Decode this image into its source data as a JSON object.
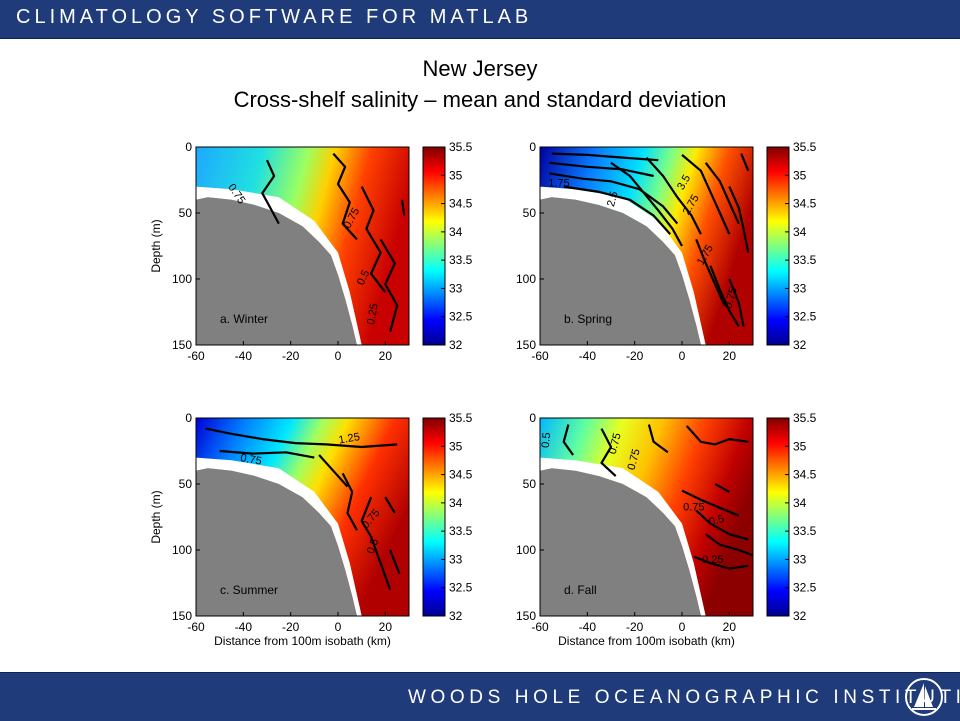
{
  "header": {
    "banner_text": "CLIMATOLOGY SOFTWARE FOR MATLAB"
  },
  "title": {
    "line1": "New Jersey",
    "line2": "Cross-shelf salinity – mean and standard deviation"
  },
  "footer": {
    "banner_text": "WOODS HOLE OCEANOGRAPHIC INSTITUTION",
    "logo_icon": "whoi-sailboat-icon"
  },
  "colors": {
    "banner": "#1f3b7a",
    "land": "#808080"
  },
  "chart_data": [
    {
      "type": "heatmap",
      "label": "a. Winter",
      "xlim": [
        -60,
        30
      ],
      "ylim": [
        150,
        0
      ],
      "xticks": [
        -60,
        -40,
        -20,
        0,
        20
      ],
      "yticks": [
        0,
        50,
        100,
        150
      ],
      "xlabel": "",
      "ylabel": "Depth (m)",
      "colorbar": {
        "range": [
          32,
          35.5
        ],
        "ticks": [
          "35.5",
          "35",
          "34.5",
          "34",
          "33.5",
          "33",
          "32.5",
          "32"
        ]
      },
      "contour_labels": [
        {
          "text": "0.75",
          "x": -44,
          "y": 37,
          "rot": 55
        },
        {
          "text": "0.75",
          "x": 7,
          "y": 55,
          "rot": -62
        },
        {
          "text": "0.5",
          "x": 12,
          "y": 100,
          "rot": -65
        },
        {
          "text": "0.25",
          "x": 16,
          "y": 127,
          "rot": -80
        }
      ]
    },
    {
      "type": "heatmap",
      "label": "b. Spring",
      "xlim": [
        -60,
        30
      ],
      "ylim": [
        150,
        0
      ],
      "xticks": [
        -60,
        -40,
        -20,
        0,
        20
      ],
      "yticks": [
        0,
        50,
        100,
        150
      ],
      "xlabel": "",
      "ylabel": "",
      "colorbar": {
        "range": [
          32,
          35.5
        ],
        "ticks": [
          "35.5",
          "35",
          "34.5",
          "34",
          "33.5",
          "33",
          "32.5",
          "32"
        ]
      },
      "contour_labels": [
        {
          "text": "1.75",
          "x": -52,
          "y": 30,
          "rot": 0
        },
        {
          "text": "2.5",
          "x": -28,
          "y": 40,
          "rot": -75
        },
        {
          "text": "3.5",
          "x": 2,
          "y": 28,
          "rot": -60
        },
        {
          "text": "2.75",
          "x": 5,
          "y": 45,
          "rot": -60
        },
        {
          "text": "1.75",
          "x": 11,
          "y": 83,
          "rot": -60
        },
        {
          "text": "0.75",
          "x": 22,
          "y": 115,
          "rot": -75
        }
      ]
    },
    {
      "type": "heatmap",
      "label": "c. Summer",
      "xlim": [
        -60,
        30
      ],
      "ylim": [
        150,
        0
      ],
      "xticks": [
        -60,
        -40,
        -20,
        0,
        20
      ],
      "yticks": [
        0,
        50,
        100,
        150
      ],
      "xlabel": "Distance from 100m isobath (km)",
      "ylabel": "Depth (m)",
      "colorbar": {
        "range": [
          32,
          35.5
        ],
        "ticks": [
          "35.5",
          "35",
          "34.5",
          "34",
          "33.5",
          "33",
          "32.5",
          "32"
        ]
      },
      "contour_labels": [
        {
          "text": "1.25",
          "x": 5,
          "y": 18,
          "rot": -10
        },
        {
          "text": "0.75",
          "x": -37,
          "y": 34,
          "rot": 10
        },
        {
          "text": "0.75",
          "x": 15,
          "y": 78,
          "rot": -50
        },
        {
          "text": "0.5",
          "x": 16,
          "y": 98,
          "rot": -70
        }
      ]
    },
    {
      "type": "heatmap",
      "label": "d. Fall",
      "xlim": [
        -60,
        30
      ],
      "ylim": [
        150,
        0
      ],
      "xticks": [
        -60,
        -40,
        -20,
        0,
        20
      ],
      "yticks": [
        0,
        50,
        100,
        150
      ],
      "xlabel": "Distance from 100m isobath (km)",
      "ylabel": "",
      "colorbar": {
        "range": [
          32,
          35.5
        ],
        "ticks": [
          "35.5",
          "35",
          "34.5",
          "34",
          "33.5",
          "33",
          "32.5",
          "32"
        ]
      },
      "contour_labels": [
        {
          "text": "0.5",
          "x": -56,
          "y": 17,
          "rot": -85
        },
        {
          "text": "0.75",
          "x": -27,
          "y": 20,
          "rot": -75
        },
        {
          "text": "0.75",
          "x": -19,
          "y": 32,
          "rot": -75
        },
        {
          "text": "0.75",
          "x": 5,
          "y": 70,
          "rot": 0
        },
        {
          "text": "0.5",
          "x": 15,
          "y": 80,
          "rot": -15
        },
        {
          "text": "0.25",
          "x": 13,
          "y": 110,
          "rot": 0
        }
      ]
    }
  ]
}
